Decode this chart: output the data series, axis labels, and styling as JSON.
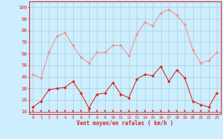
{
  "hours": [
    0,
    1,
    2,
    3,
    4,
    5,
    6,
    7,
    8,
    9,
    10,
    11,
    12,
    13,
    14,
    15,
    16,
    17,
    18,
    19,
    20,
    21,
    22,
    23
  ],
  "rafales": [
    42,
    39,
    61,
    75,
    78,
    67,
    57,
    52,
    61,
    61,
    67,
    67,
    58,
    77,
    87,
    84,
    95,
    98,
    93,
    85,
    63,
    52,
    54,
    61
  ],
  "moyen": [
    14,
    19,
    29,
    30,
    31,
    36,
    26,
    13,
    25,
    26,
    35,
    25,
    22,
    38,
    42,
    41,
    49,
    36,
    46,
    39,
    19,
    16,
    14,
    26
  ],
  "bg_color": "#cceeff",
  "grid_color": "#aacccc",
  "line_color_rafales": "#f09090",
  "line_color_moyen": "#dd2222",
  "xlabel": "Vent moyen/en rafales ( km/h )",
  "yticks": [
    10,
    20,
    30,
    40,
    50,
    60,
    70,
    80,
    90,
    100
  ],
  "xticks": [
    0,
    1,
    2,
    3,
    4,
    5,
    6,
    7,
    8,
    9,
    10,
    11,
    12,
    13,
    14,
    15,
    16,
    17,
    18,
    19,
    20,
    21,
    22,
    23
  ],
  "ylim": [
    8,
    105
  ],
  "xlim": [
    -0.5,
    23.5
  ]
}
